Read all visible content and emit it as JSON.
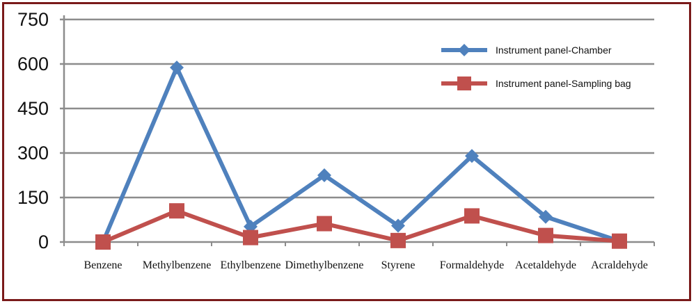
{
  "chart_data": {
    "type": "line",
    "categories": [
      "Benzene",
      "Methylbenzene",
      "Ethylbenzene",
      "Dimethylbenzene",
      "Styrene",
      "Formaldehyde",
      "Acetaldehyde",
      "Acraldehyde"
    ],
    "series": [
      {
        "name": "Instrument panel-Chamber",
        "color": "#4f81bd",
        "marker": "diamond",
        "values": [
          0,
          588,
          52,
          225,
          55,
          290,
          85,
          3
        ]
      },
      {
        "name": "Instrument panel-Sampling bag",
        "color": "#c0504d",
        "marker": "square",
        "values": [
          0,
          105,
          15,
          62,
          5,
          88,
          22,
          3
        ]
      }
    ],
    "yticks": [
      "0",
      "150",
      "300",
      "450",
      "600",
      "750"
    ],
    "ylim": [
      0,
      750
    ],
    "grid": true,
    "legend_position": "top-right"
  }
}
